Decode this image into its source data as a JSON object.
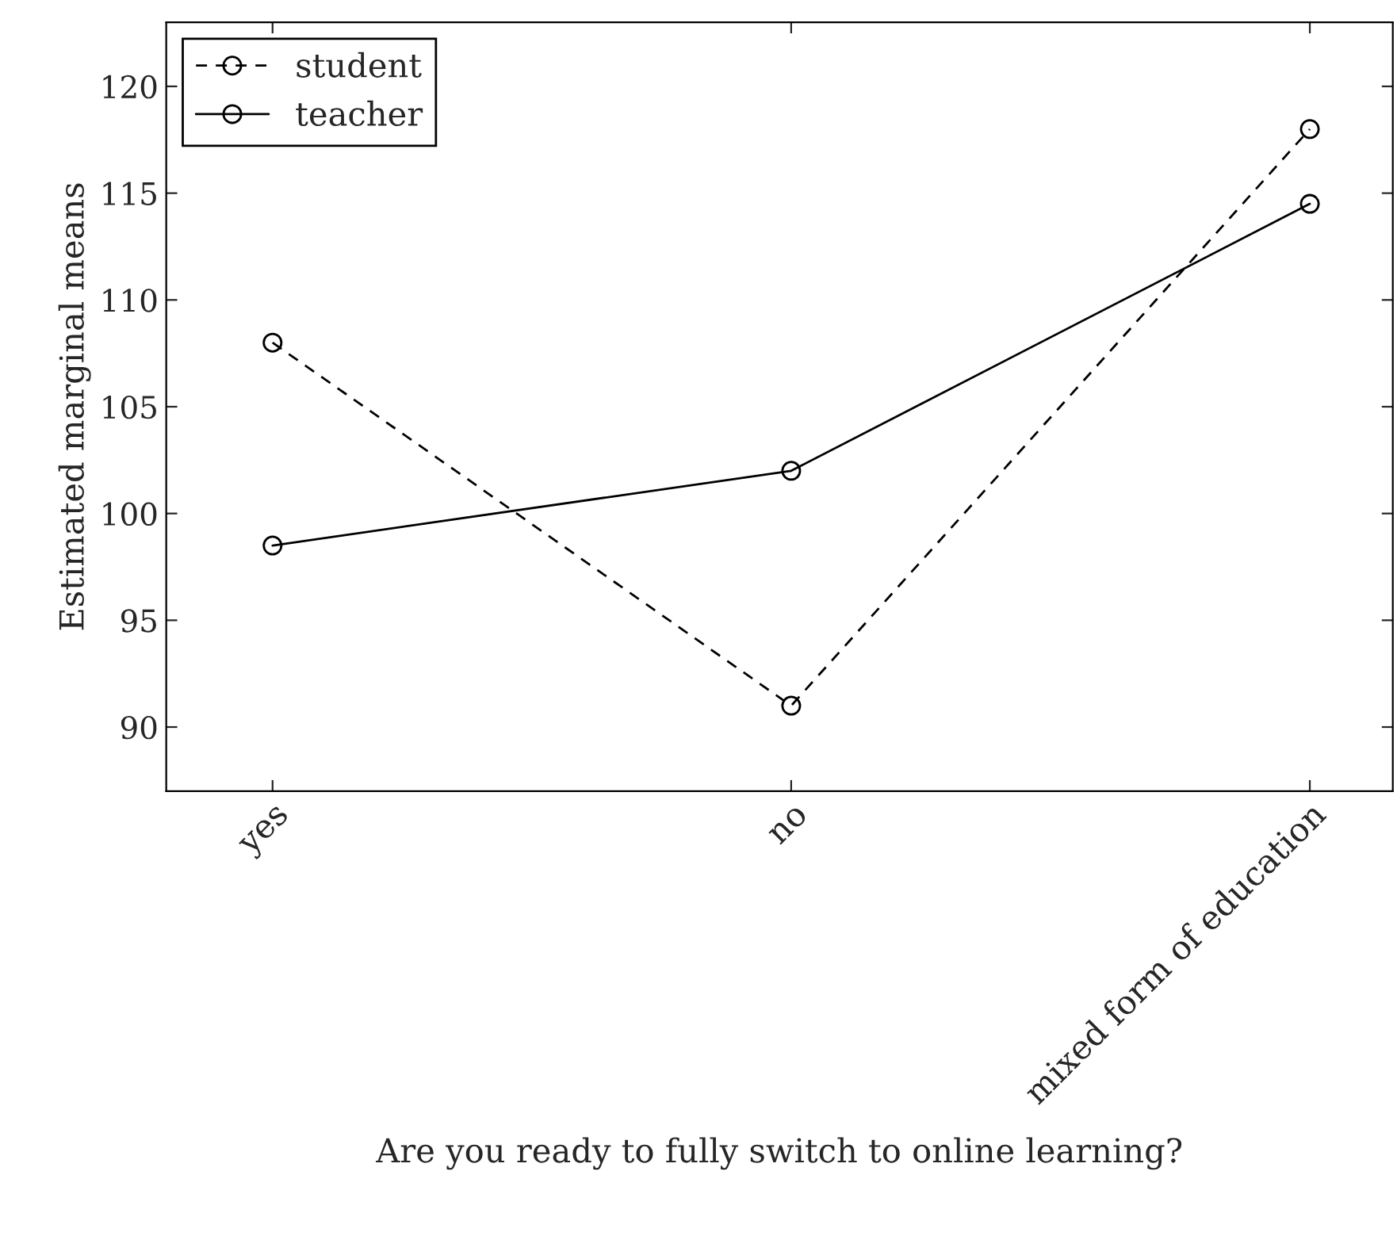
{
  "chart_data": {
    "type": "line",
    "xlabel": "Are you ready to fully switch to online learning?",
    "ylabel": "Estimated marginal means",
    "categories": [
      "yes",
      "no",
      "mixed form of education"
    ],
    "series": [
      {
        "name": "student",
        "color": "#000000",
        "values": [
          108,
          91,
          118
        ],
        "line_style": "dashed"
      },
      {
        "name": "teacher",
        "color": "#000000",
        "values": [
          98.5,
          102,
          114.5
        ],
        "line_style": "solid"
      }
    ],
    "ylim": [
      87,
      123
    ],
    "yticks": [
      90,
      95,
      100,
      105,
      110,
      115,
      120
    ],
    "marker": "circle",
    "grid": false,
    "legend": "top left"
  }
}
